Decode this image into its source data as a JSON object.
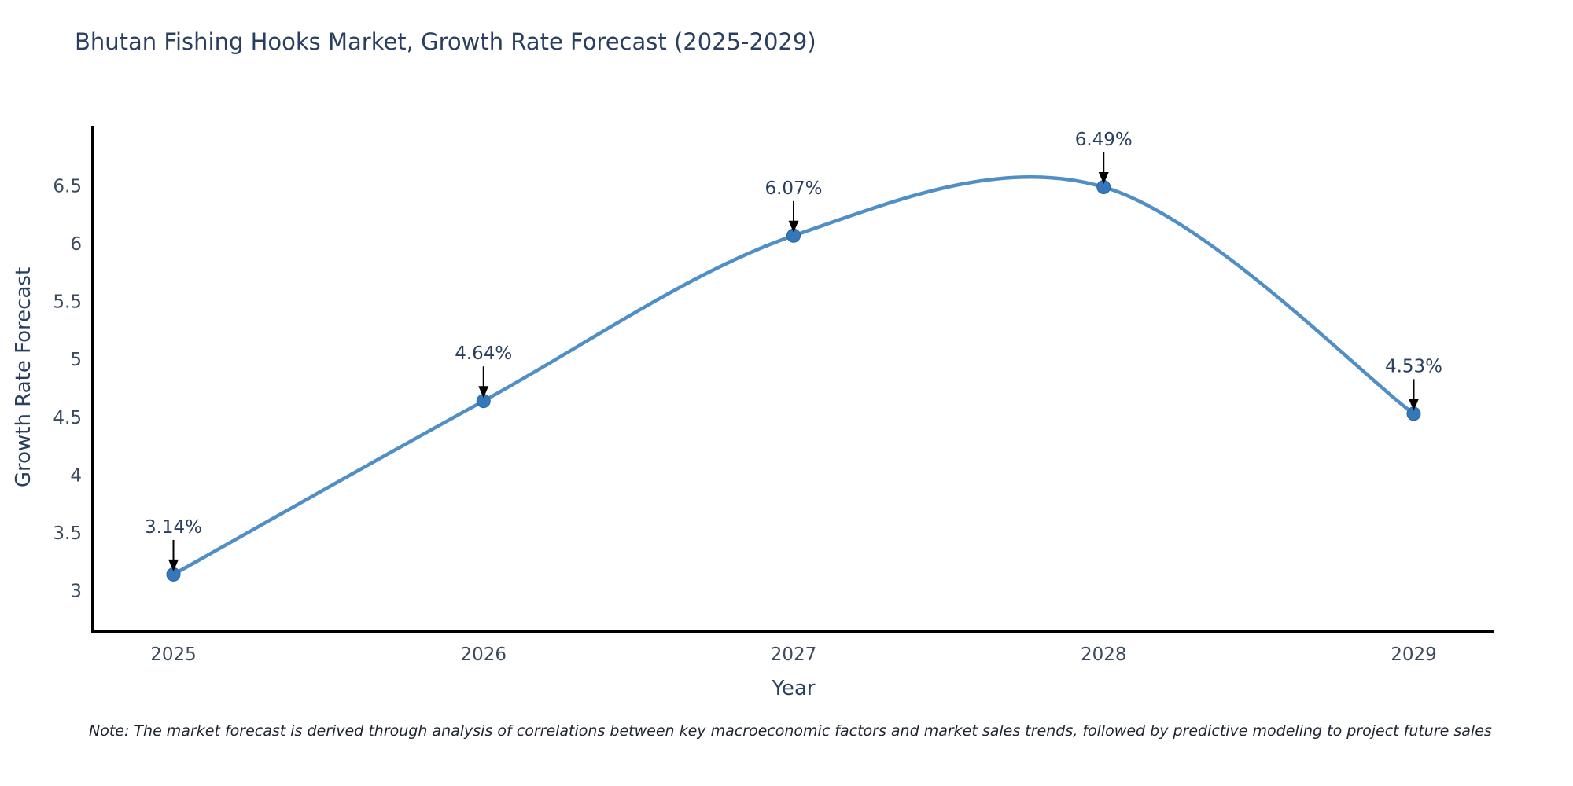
{
  "chart": {
    "title": "Bhutan Fishing Hooks Market, Growth Rate Forecast (2025-2029)",
    "xlabel": "Year",
    "ylabel": "Growth Rate Forecast",
    "note": "Note: The market forecast is derived through analysis of correlations between key macroeconomic factors and market sales trends, followed by predictive modeling to project future sales"
  },
  "chart_data": {
    "type": "line",
    "title": "Bhutan Fishing Hooks Market, Growth Rate Forecast (2025-2029)",
    "xlabel": "Year",
    "ylabel": "Growth Rate Forecast",
    "x": [
      2025,
      2026,
      2027,
      2028,
      2029
    ],
    "values": [
      3.14,
      4.64,
      6.07,
      6.49,
      4.53
    ],
    "point_labels": [
      "3.14%",
      "4.64%",
      "6.07%",
      "6.49%",
      "4.53%"
    ],
    "xticks": [
      2025,
      2026,
      2027,
      2028,
      2029
    ],
    "yticks": [
      3,
      3.5,
      4,
      4.5,
      5,
      5.5,
      6,
      6.5
    ],
    "xlim": [
      2024.74,
      2029.26
    ],
    "ylim": [
      2.65,
      7.02
    ],
    "grid": false,
    "legend": "none",
    "line_shape": "spline",
    "colors": {
      "line": "#4788c3",
      "marker": "#3478b9",
      "marker_edge": "#2b66a0",
      "text": "#2a3f5f",
      "tick_text": "#3b4a5c",
      "axis_line": "#000000",
      "annotation_arrow": "#000000"
    }
  }
}
